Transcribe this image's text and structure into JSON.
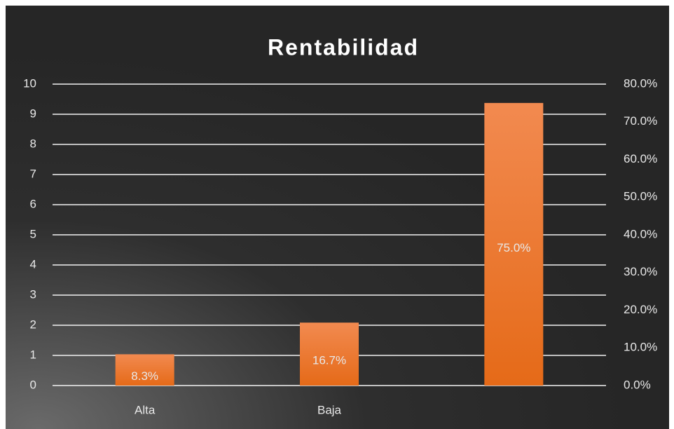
{
  "chart_data": {
    "type": "bar",
    "title": "Rentabilidad",
    "categories": [
      "Alta",
      "Baja",
      null
    ],
    "series": [
      {
        "color": "#ed7d31",
        "axis": "y2",
        "values": [
          8.3,
          16.7,
          75.0
        ],
        "value_labels": [
          "8.3%",
          "16.7%",
          "75.0%"
        ]
      }
    ],
    "ylim": [
      0,
      10
    ],
    "yticks": [
      0,
      1,
      2,
      3,
      4,
      5,
      6,
      7,
      8,
      9,
      10
    ],
    "y2lim": [
      0,
      80
    ],
    "y2ticks": [
      {
        "value": 0,
        "label": "0.0%"
      },
      {
        "value": 10,
        "label": "10.0%"
      },
      {
        "value": 20,
        "label": "20.0%"
      },
      {
        "value": 30,
        "label": "30.0%"
      },
      {
        "value": 40,
        "label": "40.0%"
      },
      {
        "value": 50,
        "label": "50.0%"
      },
      {
        "value": 60,
        "label": "60.0%"
      },
      {
        "value": 70,
        "label": "70.0%"
      },
      {
        "value": 80,
        "label": "80.0%"
      }
    ],
    "grid": true
  }
}
